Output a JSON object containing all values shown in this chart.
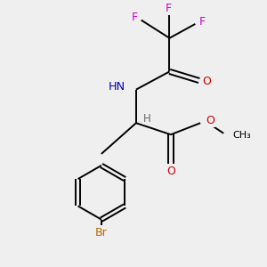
{
  "background_color": "#efefef",
  "bond_color": "#000000",
  "atom_colors": {
    "F": "#cc00cc",
    "N": "#0000bb",
    "O": "#cc0000",
    "Br": "#bb6600",
    "H": "#666666",
    "C": "#000000"
  },
  "bond_lw": 1.4,
  "figsize": [
    3.0,
    3.0
  ],
  "dpi": 100
}
